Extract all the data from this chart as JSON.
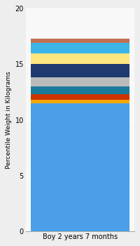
{
  "category": "Boy 2 years 7 months",
  "ylabel": "Percentile Weight in Kilograms",
  "ylim": [
    0,
    20
  ],
  "yticks": [
    0,
    5,
    10,
    15,
    20
  ],
  "background_color": "#eeeeee",
  "plot_bg": "#f8f8f8",
  "bar_width": 0.45,
  "segments": [
    {
      "value": 11.5,
      "color": "#4A9FE8"
    },
    {
      "value": 0.3,
      "color": "#F5A800"
    },
    {
      "value": 0.5,
      "color": "#CC3300"
    },
    {
      "value": 0.7,
      "color": "#1A7A9A"
    },
    {
      "value": 0.8,
      "color": "#BBBBBB"
    },
    {
      "value": 1.2,
      "color": "#1E3A6E"
    },
    {
      "value": 1.0,
      "color": "#FFE680"
    },
    {
      "value": 0.9,
      "color": "#3BB5E8"
    },
    {
      "value": 0.4,
      "color": "#C07050"
    }
  ]
}
